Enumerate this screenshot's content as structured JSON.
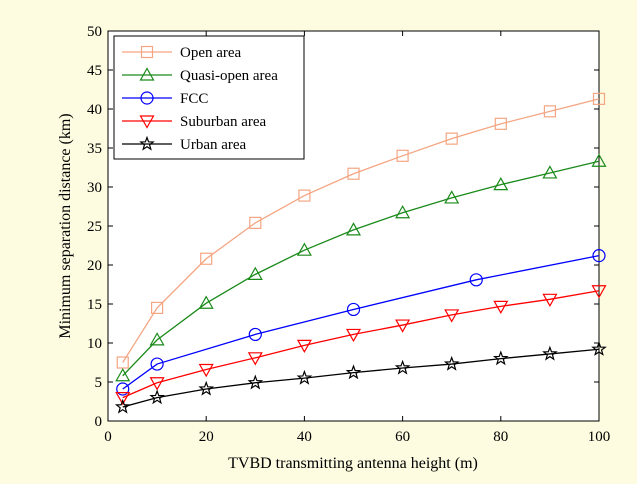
{
  "chart_data": {
    "type": "line",
    "title": "",
    "xlabel": "TVBD transmitting antenna height (m)",
    "ylabel": "Minimum separation distance (km)",
    "xlim": [
      0,
      100
    ],
    "ylim": [
      0,
      50
    ],
    "xticks": [
      0,
      20,
      40,
      60,
      80,
      100
    ],
    "yticks": [
      0,
      5,
      10,
      15,
      20,
      25,
      30,
      35,
      40,
      45,
      50
    ],
    "grid": false,
    "legend_position": "top-left",
    "series": [
      {
        "name": "Open area",
        "color": "#f4a582",
        "marker": "square",
        "x": [
          3,
          10,
          20,
          30,
          40,
          50,
          60,
          70,
          80,
          90,
          100
        ],
        "y": [
          7.5,
          14.5,
          20.8,
          25.4,
          28.9,
          31.7,
          34.0,
          36.2,
          38.1,
          39.7,
          41.3
        ]
      },
      {
        "name": "Quasi-open area",
        "color": "#1a8a1a",
        "marker": "triangle-up",
        "x": [
          3,
          10,
          20,
          30,
          40,
          50,
          60,
          70,
          80,
          90,
          100
        ],
        "y": [
          5.8,
          10.4,
          15.1,
          18.8,
          21.9,
          24.5,
          26.7,
          28.6,
          30.3,
          31.8,
          33.3
        ]
      },
      {
        "name": "FCC",
        "color": "#0000ff",
        "marker": "circle",
        "x": [
          3,
          10,
          30,
          50,
          75,
          100
        ],
        "y": [
          4.1,
          7.3,
          11.1,
          14.3,
          18.1,
          21.2
        ]
      },
      {
        "name": "Suburban area",
        "color": "#ff0000",
        "marker": "triangle-down",
        "x": [
          3,
          10,
          20,
          30,
          40,
          50,
          60,
          70,
          80,
          90,
          100
        ],
        "y": [
          3.0,
          4.9,
          6.6,
          8.1,
          9.7,
          11.1,
          12.3,
          13.6,
          14.7,
          15.6,
          16.7
        ]
      },
      {
        "name": "Urban area",
        "color": "#000000",
        "marker": "star",
        "x": [
          3,
          10,
          20,
          30,
          40,
          50,
          60,
          70,
          80,
          90,
          100
        ],
        "y": [
          1.8,
          3.0,
          4.1,
          4.9,
          5.5,
          6.2,
          6.8,
          7.3,
          8.0,
          8.6,
          9.2
        ]
      }
    ]
  }
}
